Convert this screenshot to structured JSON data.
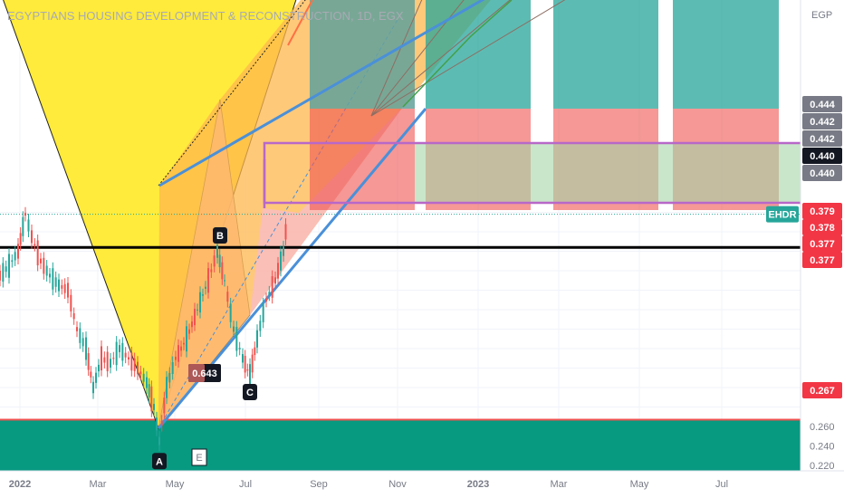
{
  "chart_data": {
    "type": "candlestick",
    "title": "EGYPTIANS HOUSING DEVELOPMENT & RECONSTRUCTION, 1D, EGX",
    "currency": "EGP",
    "ylim": [
      0.215,
      0.5
    ],
    "y_ticks": [
      0.22,
      0.24,
      0.26,
      0.28,
      0.3,
      0.32,
      0.34,
      0.36,
      0.38,
      0.4,
      0.42,
      0.44,
      0.46,
      0.48
    ],
    "x_ticks": [
      "2022",
      "Mar",
      "May",
      "Jul",
      "Sep",
      "Nov",
      "2023",
      "Mar",
      "May",
      "Jul"
    ],
    "symbol_label": "EHDR",
    "price_series": [
      [
        0,
        0.415
      ],
      [
        10,
        0.425
      ],
      [
        20,
        0.44
      ],
      [
        28,
        0.478
      ],
      [
        35,
        0.455
      ],
      [
        45,
        0.43
      ],
      [
        55,
        0.415
      ],
      [
        65,
        0.405
      ],
      [
        75,
        0.4
      ],
      [
        85,
        0.36
      ],
      [
        95,
        0.34
      ],
      [
        103,
        0.3
      ],
      [
        112,
        0.33
      ],
      [
        122,
        0.325
      ],
      [
        132,
        0.34
      ],
      [
        142,
        0.33
      ],
      [
        152,
        0.32
      ],
      [
        162,
        0.305
      ],
      [
        170,
        0.28
      ],
      [
        176,
        0.245
      ],
      [
        184,
        0.3
      ],
      [
        194,
        0.33
      ],
      [
        206,
        0.35
      ],
      [
        218,
        0.38
      ],
      [
        230,
        0.41
      ],
      [
        240,
        0.44
      ],
      [
        248,
        0.41
      ],
      [
        258,
        0.36
      ],
      [
        268,
        0.33
      ],
      [
        276,
        0.312
      ],
      [
        284,
        0.35
      ],
      [
        294,
        0.39
      ],
      [
        304,
        0.41
      ],
      [
        313,
        0.44
      ],
      [
        318,
        0.48
      ]
    ],
    "pattern_points": [
      {
        "label": "A",
        "x": 176,
        "value": 0.243
      },
      {
        "label": "B",
        "x": 243,
        "value": 0.447
      },
      {
        "label": "C",
        "x": 276,
        "value": 0.314
      }
    ],
    "ratio_label": "0.643",
    "box_label": "E",
    "price_levels": [
      {
        "value": 0.444,
        "label": "0.444",
        "style": "gray"
      },
      {
        "value": 0.442,
        "label": "0.442",
        "style": "gray"
      },
      {
        "value": 0.442,
        "label": "0.442",
        "style": "gray"
      },
      {
        "value": 0.44,
        "label": "0.440",
        "style": "black"
      },
      {
        "value": 0.44,
        "label": "0.440",
        "style": "gray"
      },
      {
        "value": 0.379,
        "label": "0.379",
        "style": "red"
      },
      {
        "value": 0.378,
        "label": "0.378",
        "style": "red"
      },
      {
        "value": 0.377,
        "label": "0.377",
        "style": "red"
      },
      {
        "value": 0.377,
        "label": "0.377",
        "style": "red"
      },
      {
        "value": 0.267,
        "label": "0.267",
        "style": "red"
      }
    ]
  },
  "colors": {
    "up": "#26a69a",
    "down": "#ef5350",
    "yellow": "#ffeb3b",
    "orange": "#ffb74d",
    "pink": "#f8bbd0",
    "blue": "#4a90d9",
    "teal": "#089981",
    "purple": "#b868c8",
    "gray": "#787b86"
  }
}
